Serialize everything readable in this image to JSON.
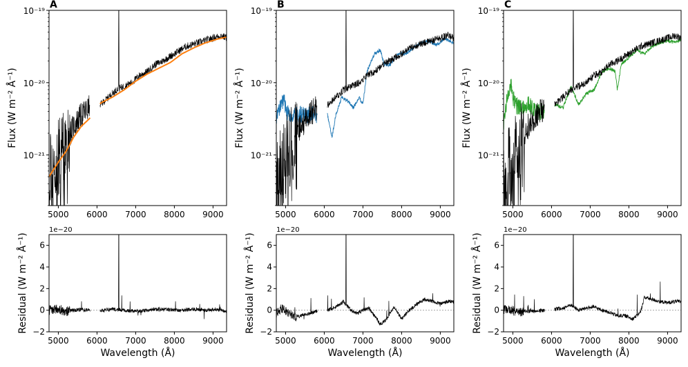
{
  "chart_data": {
    "type": "line",
    "title": "",
    "colors": {
      "observed": "#000000",
      "model_A": "#ff7f0e",
      "model_B": "#1f77b4",
      "model_C": "#2ca02c",
      "reference_line": "#999999"
    },
    "shared": {
      "flux_ylabel": "Flux (W m⁻² Å⁻¹)",
      "residual_ylabel": "Residual (W m⁻² Å⁻¹)",
      "xlabel": "Wavelength (Å)",
      "xlim": [
        4760,
        9350
      ],
      "flux_ylim_log10": [
        -21.7,
        -19.0
      ],
      "residual_ylim": [
        -2,
        7
      ],
      "residual_offset_label": "1e−20",
      "x_ticks": [
        5000,
        6000,
        7000,
        8000,
        9000
      ],
      "x_tick_labels": [
        "5000",
        "6000",
        "7000",
        "8000",
        "9000"
      ],
      "flux_y_ticks_log10": [
        -21,
        -20,
        -19
      ],
      "flux_y_tick_labels": [
        "10⁻²¹",
        "10⁻²⁰",
        "10⁻¹⁹"
      ],
      "residual_y_ticks": [
        -2,
        0,
        2,
        4,
        6
      ],
      "residual_y_tick_labels": [
        "−2",
        "0",
        "2",
        "4",
        "6"
      ],
      "gap": [
        5820,
        6080
      ],
      "observed_log10_flux": {
        "x": [
          4760,
          4900,
          5000,
          5200,
          5400,
          5600,
          5800,
          6100,
          6300,
          6500,
          6700,
          6900,
          7100,
          7300,
          7500,
          7700,
          8000,
          8300,
          8600,
          8900,
          9200,
          9350
        ],
        "y": [
          -21.25,
          -21.15,
          -21.0,
          -20.8,
          -20.6,
          -20.45,
          -20.35,
          -20.3,
          -20.2,
          -20.1,
          -20.05,
          -20.0,
          -19.9,
          -19.85,
          -19.75,
          -19.7,
          -19.6,
          -19.5,
          -19.45,
          -19.4,
          -19.35,
          -19.38
        ]
      },
      "h_alpha": {
        "x": 6563,
        "log10_peak": -19.0,
        "residual_peak": 7.0
      }
    },
    "panels": [
      {
        "letter": "A",
        "model_color": "orange",
        "model_log10_flux": {
          "x": [
            4760,
            5000,
            5200,
            5400,
            5600,
            5800,
            6100,
            6400,
            6700,
            7000,
            7300,
            7600,
            7900,
            8200,
            8500,
            8800,
            9100,
            9350
          ],
          "y": [
            -21.3,
            -21.1,
            -20.95,
            -20.75,
            -20.6,
            -20.5,
            -20.28,
            -20.2,
            -20.1,
            -19.98,
            -19.88,
            -19.8,
            -19.72,
            -19.6,
            -19.52,
            -19.45,
            -19.4,
            -19.37
          ]
        },
        "residual": {
          "x": [
            4760,
            5000,
            5200,
            5400,
            5600,
            5800,
            6100,
            6400,
            6700,
            7000,
            7300,
            7600,
            7900,
            8200,
            8500,
            8800,
            9100,
            9350
          ],
          "y": [
            0.0,
            0.1,
            -0.1,
            0.0,
            0.05,
            0.0,
            -0.05,
            0.1,
            0.0,
            -0.1,
            0.0,
            0.1,
            0.05,
            0.0,
            0.1,
            0.0,
            0.1,
            -0.1
          ]
        }
      },
      {
        "letter": "B",
        "model_color": "blue",
        "model_log10_flux": {
          "x": [
            4760,
            4850,
            4950,
            5050,
            5150,
            5300,
            5500,
            5800,
            6050,
            6200,
            6300,
            6450,
            6600,
            6750,
            6900,
            7000,
            7100,
            7300,
            7450,
            7550,
            7700,
            7900,
            8100,
            8300,
            8500,
            8700,
            8900,
            9100,
            9350
          ],
          "y": [
            -20.55,
            -20.3,
            -20.25,
            -20.4,
            -20.5,
            -20.45,
            -20.45,
            -20.45,
            -20.35,
            -20.75,
            -20.45,
            -20.2,
            -20.25,
            -20.35,
            -20.2,
            -20.3,
            -19.85,
            -19.6,
            -19.55,
            -19.75,
            -19.75,
            -19.6,
            -19.6,
            -19.52,
            -19.45,
            -19.42,
            -19.48,
            -19.4,
            -19.45
          ]
        },
        "residual": {
          "x": [
            4760,
            4900,
            5100,
            5300,
            5600,
            5800,
            6100,
            6300,
            6500,
            6700,
            6850,
            7000,
            7150,
            7300,
            7450,
            7600,
            7800,
            8000,
            8200,
            8400,
            8600,
            8800,
            9000,
            9200,
            9350
          ],
          "y": [
            -0.3,
            0.2,
            -0.4,
            -0.6,
            -0.3,
            -0.1,
            0.0,
            0.3,
            0.8,
            0.0,
            -0.3,
            0.0,
            0.2,
            -0.5,
            -1.3,
            -0.9,
            0.3,
            -0.8,
            0.0,
            0.6,
            1.0,
            0.8,
            0.6,
            0.8,
            0.8
          ]
        }
      },
      {
        "letter": "C",
        "model_color": "green",
        "model_log10_flux": {
          "x": [
            4760,
            4850,
            4950,
            5050,
            5200,
            5400,
            5600,
            5800,
            6100,
            6300,
            6500,
            6700,
            6900,
            7100,
            7300,
            7500,
            7650,
            7700,
            7800,
            8000,
            8200,
            8400,
            8600,
            8800,
            9000,
            9200,
            9350
          ],
          "y": [
            -20.55,
            -20.2,
            -20.05,
            -20.3,
            -20.35,
            -20.3,
            -20.4,
            -20.4,
            -20.3,
            -20.35,
            -20.05,
            -20.3,
            -20.15,
            -20.1,
            -19.85,
            -19.8,
            -19.85,
            -20.1,
            -19.75,
            -19.65,
            -19.55,
            -19.6,
            -19.5,
            -19.45,
            -19.42,
            -19.45,
            -19.4
          ]
        },
        "residual": {
          "x": [
            4760,
            4900,
            5100,
            5300,
            5600,
            5800,
            6100,
            6300,
            6500,
            6700,
            6900,
            7100,
            7300,
            7500,
            7700,
            7900,
            8100,
            8300,
            8400,
            8600,
            8800,
            9000,
            9200,
            9350
          ],
          "y": [
            0.0,
            0.1,
            -0.2,
            -0.1,
            -0.1,
            0.0,
            0.1,
            0.2,
            0.5,
            0.0,
            0.2,
            0.3,
            0.0,
            -0.2,
            -0.5,
            -0.5,
            -0.8,
            -0.2,
            1.2,
            1.0,
            0.8,
            0.7,
            0.8,
            0.8
          ]
        }
      }
    ]
  }
}
